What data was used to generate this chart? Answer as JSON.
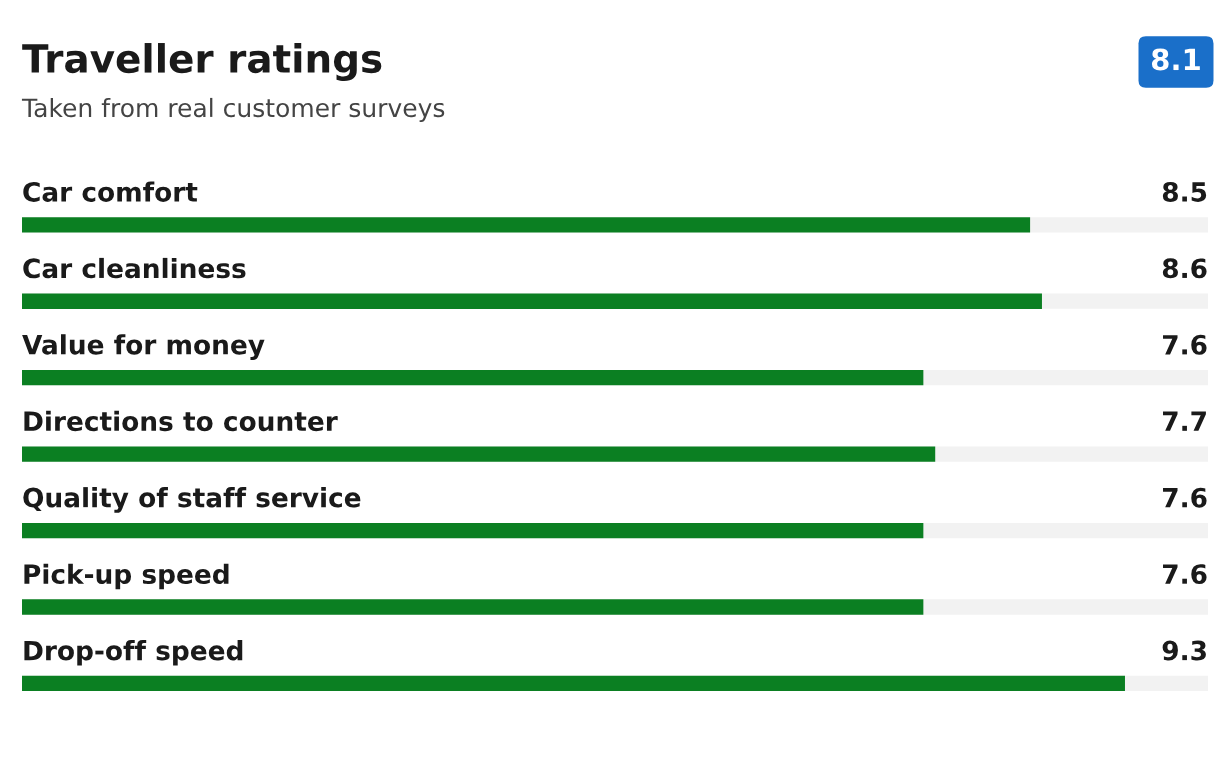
{
  "chart_data": {
    "type": "bar",
    "orientation": "horizontal",
    "title": "Traveller ratings",
    "subtitle": "Taken from real customer surveys",
    "categories": [
      "Car comfort",
      "Car cleanliness",
      "Value for money",
      "Directions to counter",
      "Quality of staff service",
      "Pick-up speed",
      "Drop-off speed"
    ],
    "values": [
      8.5,
      8.6,
      7.6,
      7.7,
      7.6,
      7.6,
      9.3
    ],
    "color": "#0b7f22",
    "xlim": [
      0,
      10
    ],
    "data_labels": true,
    "tick_labels": false,
    "annotations": [
      "8.1"
    ]
  }
}
